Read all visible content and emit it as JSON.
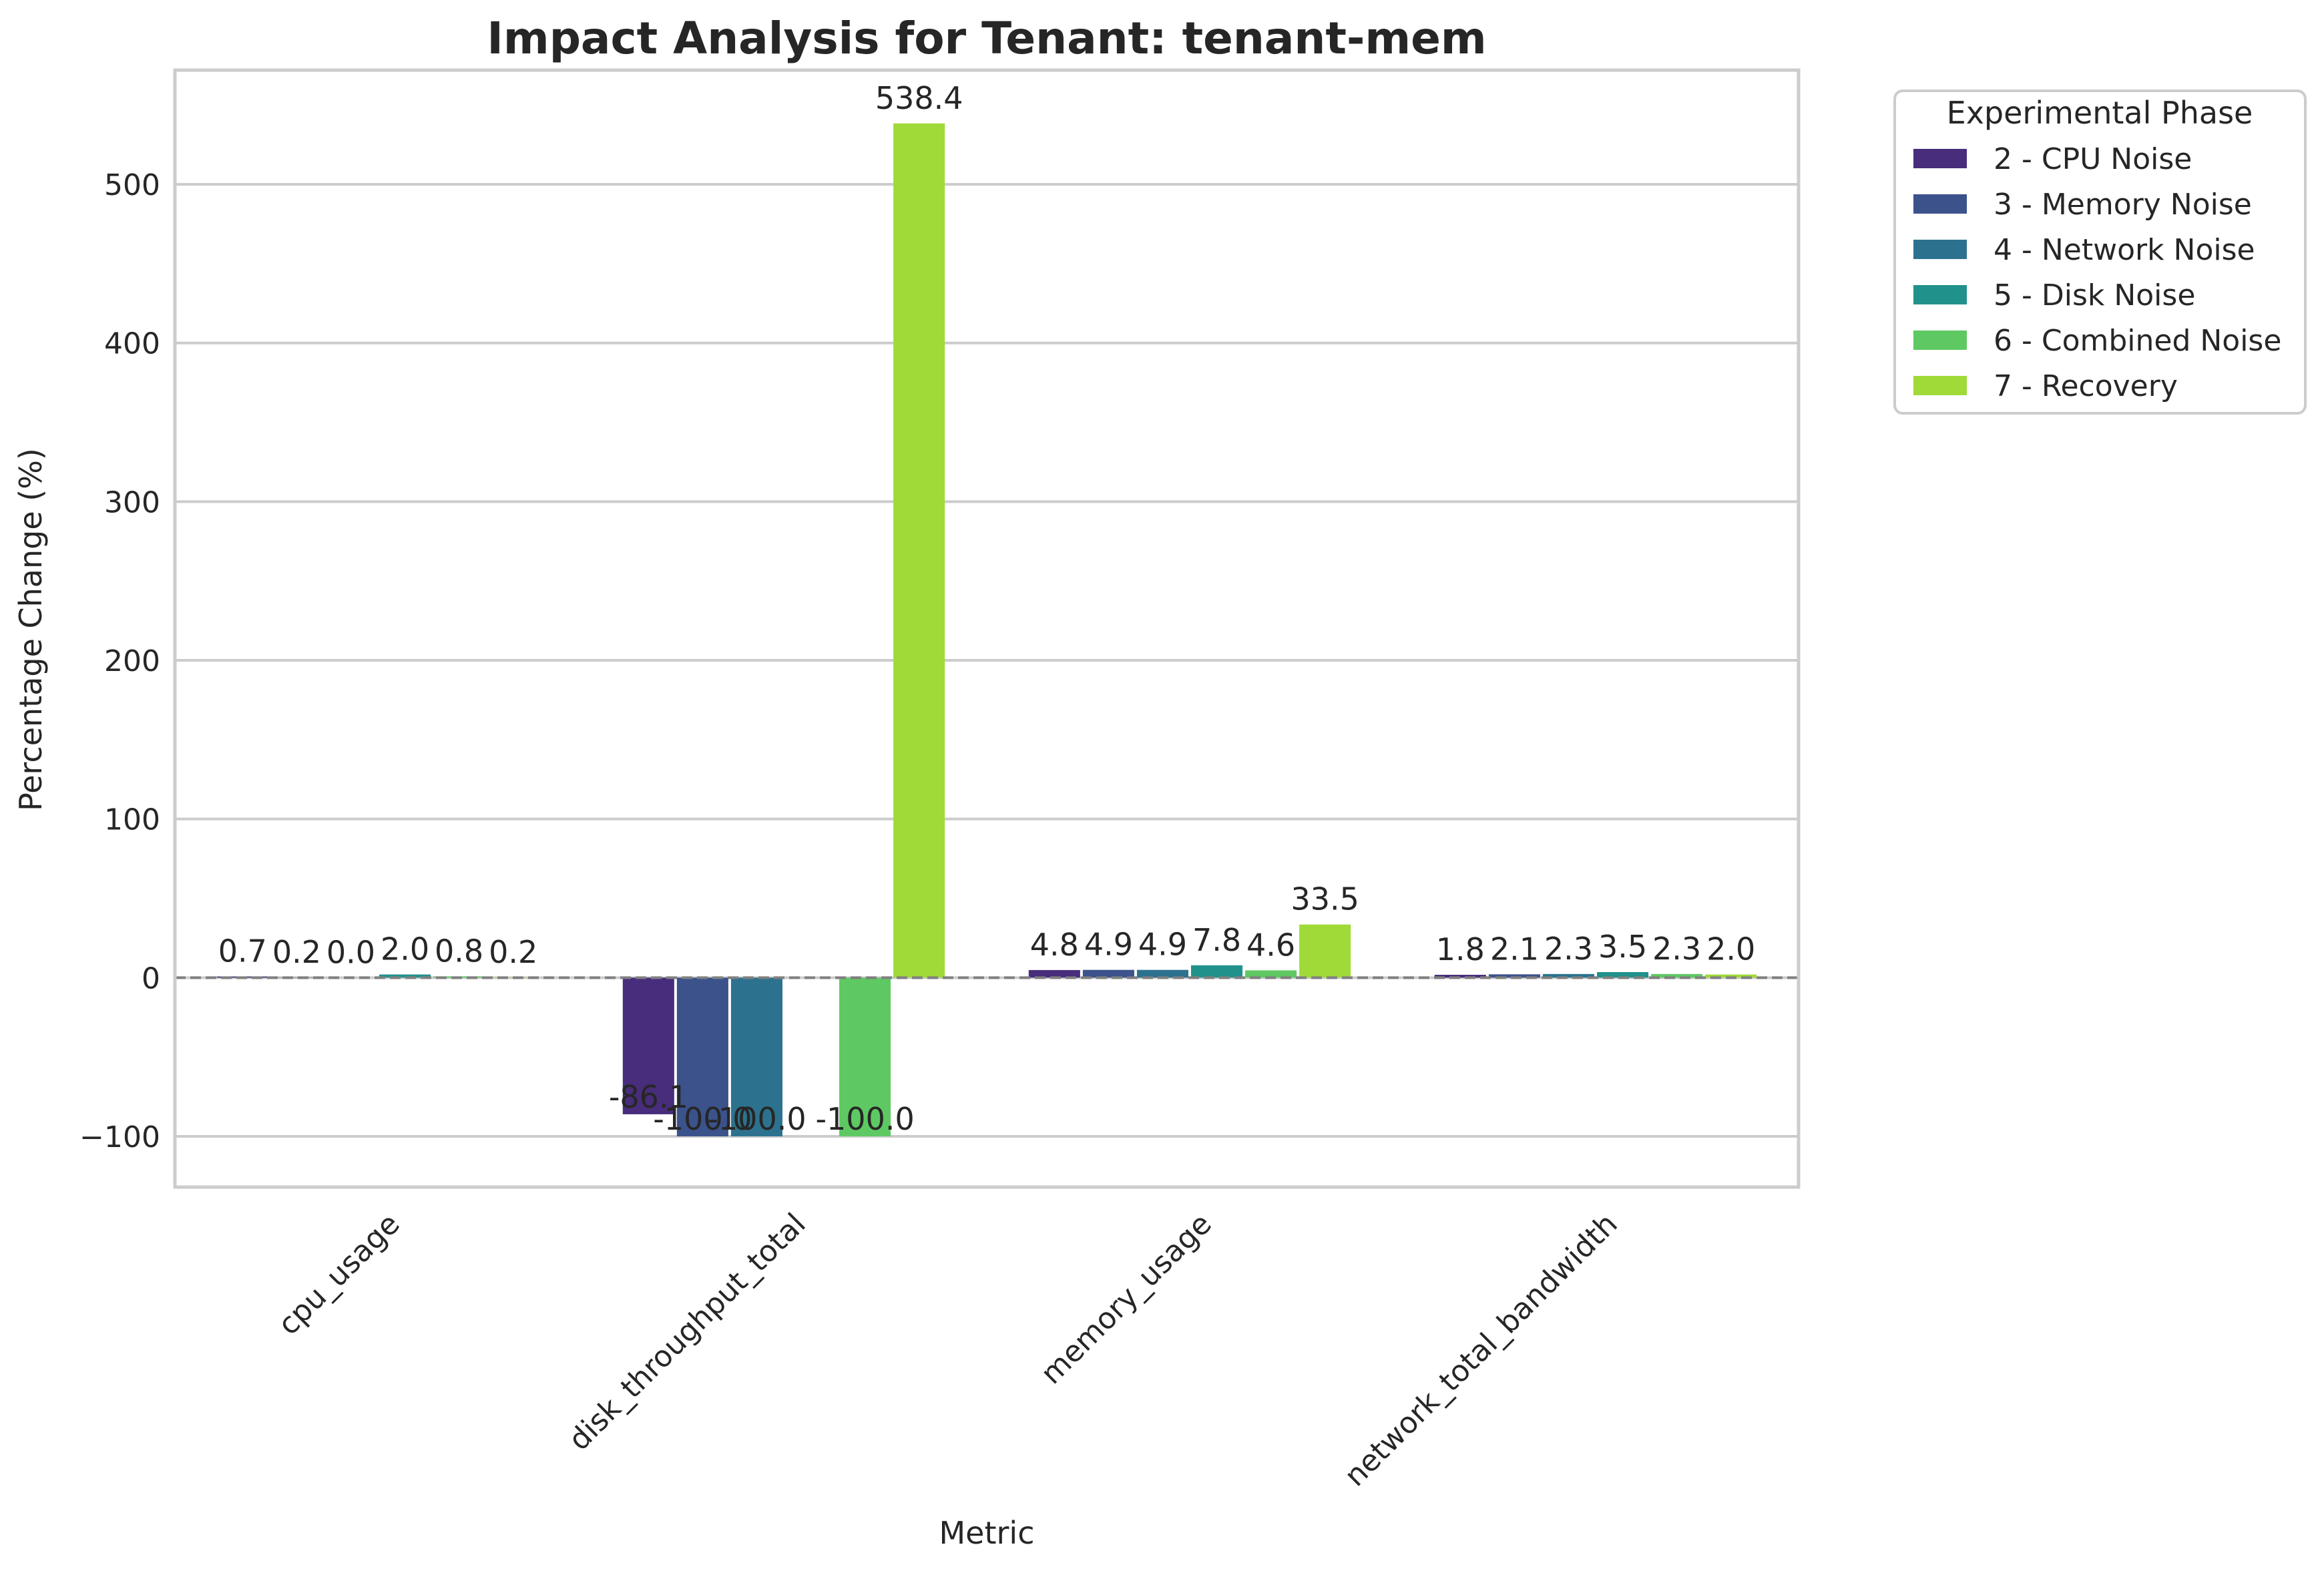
{
  "chart_data": {
    "type": "bar",
    "title": "Impact Analysis for Tenant: tenant-mem",
    "xlabel": "Metric",
    "ylabel": "Percentage Change (%)",
    "ylim": [
      -132,
      572
    ],
    "yticks": [
      -100,
      0,
      100,
      200,
      300,
      400,
      500
    ],
    "ytick_labels": [
      "−100",
      "0",
      "100",
      "200",
      "300",
      "400",
      "500"
    ],
    "categories": [
      "cpu_usage",
      "disk_throughput_total",
      "memory_usage",
      "network_total_bandwidth"
    ],
    "grid": true,
    "legend": {
      "title": "Experimental Phase",
      "placement": "outside-right-top"
    },
    "series": [
      {
        "name": "2 - CPU Noise",
        "color": "#472d7b",
        "values": [
          0.7,
          -86.1,
          4.8,
          1.8
        ],
        "labels": [
          "0.7",
          "-86.1",
          "4.8",
          "1.8"
        ]
      },
      {
        "name": "3 - Memory Noise",
        "color": "#3b528b",
        "values": [
          0.2,
          -100.0,
          4.9,
          2.1
        ],
        "labels": [
          "0.2",
          "-100.0",
          "4.9",
          "2.1"
        ]
      },
      {
        "name": "4 - Network Noise",
        "color": "#2c728e",
        "values": [
          0.0,
          -100.0,
          4.9,
          2.3
        ],
        "labels": [
          "0.0",
          "-100.0",
          "4.9",
          "2.3"
        ]
      },
      {
        "name": "5 - Disk Noise",
        "color": "#21918c",
        "values": [
          2.0,
          0.0,
          7.8,
          3.5
        ],
        "labels": [
          "2.0",
          "",
          "7.8",
          "3.5"
        ]
      },
      {
        "name": "6 - Combined Noise",
        "color": "#5ec962",
        "values": [
          0.8,
          -100.0,
          4.6,
          2.3
        ],
        "labels": [
          "0.8",
          "-100.0",
          "4.6",
          "2.3"
        ]
      },
      {
        "name": "7 - Recovery",
        "color": "#a0da39",
        "values": [
          0.2,
          538.4,
          33.5,
          2.0
        ],
        "labels": [
          "0.2",
          "538.4",
          "33.5",
          "2.0"
        ]
      }
    ]
  }
}
